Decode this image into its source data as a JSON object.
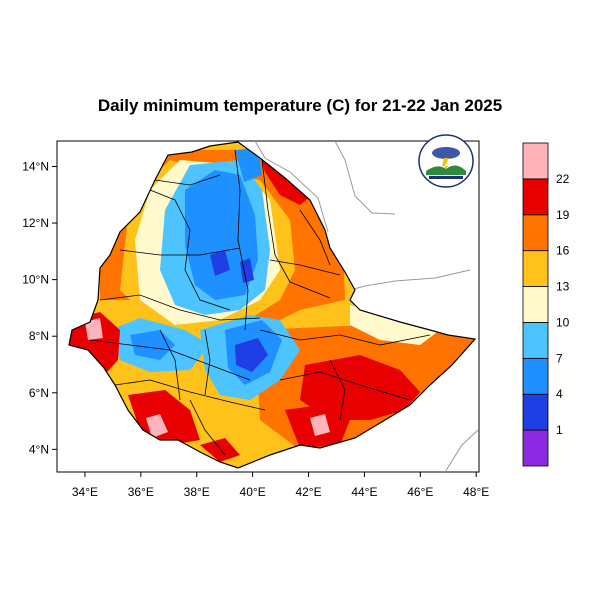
{
  "title": "Daily minimum temperature (C) for 21-22 Jan 2025",
  "map": {
    "lon_range": [
      33,
      48.1
    ],
    "lat_range": [
      3.2,
      14.9
    ],
    "x_ticks": [
      "34°E",
      "36°E",
      "38°E",
      "40°E",
      "42°E",
      "44°E",
      "46°E",
      "48°E"
    ],
    "y_ticks": [
      "14°N",
      "12°N",
      "10°N",
      "8°N",
      "6°N",
      "4°N"
    ],
    "country": "Ethiopia",
    "logo": "ethiopian-meteorology-institute-logo"
  },
  "legend": {
    "levels": [
      "1",
      "4",
      "7",
      "10",
      "13",
      "16",
      "19",
      "22"
    ],
    "colors": [
      "#8b2be2",
      "#1f3ee6",
      "#1e90ff",
      "#4dc3ff",
      "#fff9cc",
      "#ffc21a",
      "#ff7300",
      "#e80000",
      "#ffb3ba"
    ]
  },
  "colors": {
    "frame": "#000000",
    "boundary": "#000000",
    "neighbors": "#999999"
  }
}
